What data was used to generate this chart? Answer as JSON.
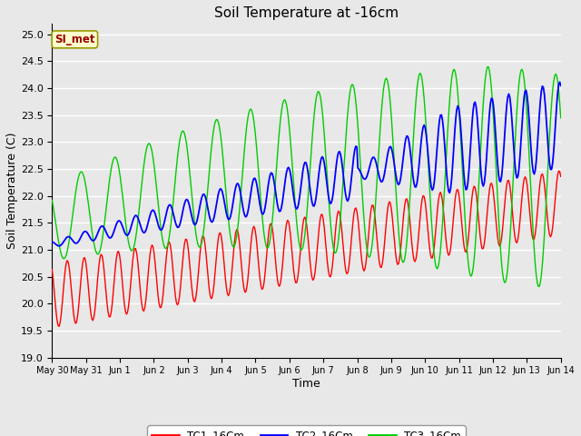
{
  "title": "Soil Temperature at -16cm",
  "xlabel": "Time",
  "ylabel": "Soil Temperature (C)",
  "ylim": [
    19.0,
    25.2
  ],
  "yticks": [
    19.0,
    19.5,
    20.0,
    20.5,
    21.0,
    21.5,
    22.0,
    22.5,
    23.0,
    23.5,
    24.0,
    24.5,
    25.0
  ],
  "bg_color": "#e8e8e8",
  "plot_bg": "#e8e8e8",
  "grid_color": "white",
  "annotation_text": "SI_met",
  "annotation_bg": "#ffffcc",
  "annotation_border": "#999900",
  "annotation_text_color": "#990000",
  "line_colors": {
    "TC1_16Cm": "#ff0000",
    "TC2_16Cm": "#0000ff",
    "TC3_16Cm": "#00cc00"
  },
  "legend_labels": [
    "TC1_16Cm",
    "TC2_16Cm",
    "TC3_16Cm"
  ],
  "xtick_labels": [
    "May 30",
    "May 31",
    "Jun 1",
    "Jun 2",
    "Jun 3",
    "Jun 4",
    "Jun 5",
    "Jun 6",
    "Jun 7",
    "Jun 8",
    "Jun 9",
    "Jun 10",
    "Jun 11",
    "Jun 12",
    "Jun 13",
    "Jun 14"
  ]
}
